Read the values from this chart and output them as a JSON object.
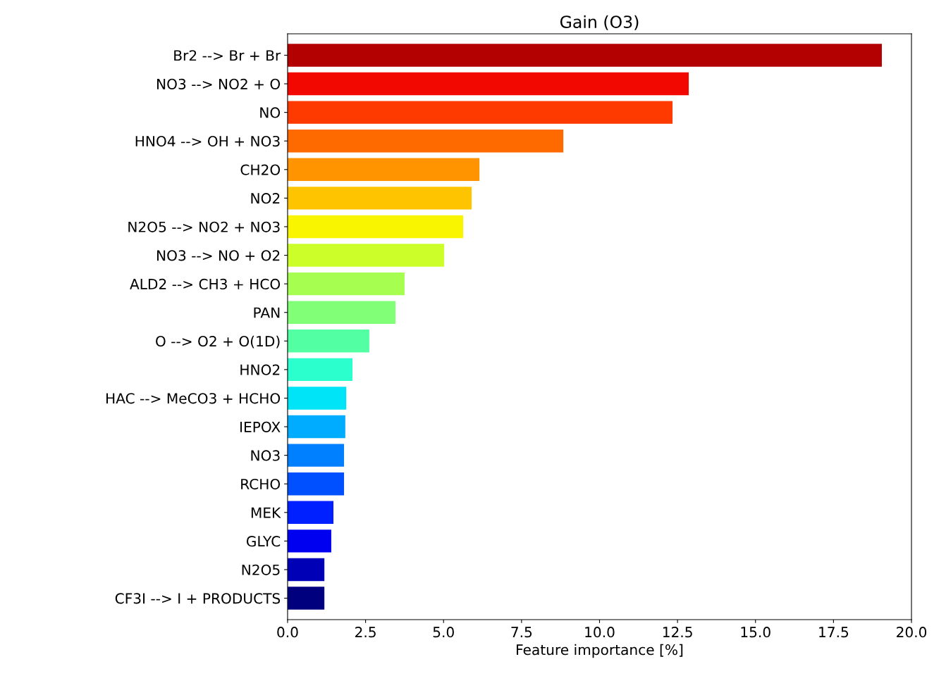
{
  "chart_data": {
    "type": "bar",
    "orientation": "horizontal",
    "title": "Gain (O3)",
    "xlabel": "Feature importance [%]",
    "categories": [
      "Br2 --> Br + Br",
      "NO3 --> NO2 + O",
      "NO",
      "HNO4 --> OH + NO3",
      "CH2O",
      "NO2",
      "N2O5 --> NO2 + NO3",
      "NO3 --> NO + O2",
      "ALD2 --> CH3 + HCO",
      "PAN",
      "O --> O2 + O(1D)",
      "HNO2",
      "HAC --> MeCO3 + HCHO",
      "IEPOX",
      "NO3",
      "RCHO",
      "MEK",
      "GLYC",
      "N2O5",
      "CF3I --> I + PRODUCTS"
    ],
    "values": [
      19.05,
      12.86,
      12.34,
      8.84,
      6.15,
      5.9,
      5.63,
      5.02,
      3.75,
      3.46,
      2.62,
      2.08,
      1.88,
      1.85,
      1.81,
      1.81,
      1.47,
      1.4,
      1.18,
      1.18
    ],
    "colors": [
      "#b30000",
      "#f20800",
      "#ff3a00",
      "#ff6a00",
      "#ff9400",
      "#ffc400",
      "#f9f500",
      "#ccff2a",
      "#a6ff50",
      "#80ff77",
      "#53ffa3",
      "#2affcd",
      "#00e4f8",
      "#00acff",
      "#0080ff",
      "#0050ff",
      "#0020ff",
      "#0000f1",
      "#0000b6",
      "#00007f"
    ],
    "xlim": [
      0,
      20
    ],
    "xticks": [
      {
        "value": 0,
        "label": "0.0"
      },
      {
        "value": 2.5,
        "label": "2.5"
      },
      {
        "value": 5,
        "label": "5.0"
      },
      {
        "value": 7.5,
        "label": "7.5"
      },
      {
        "value": 10,
        "label": "10.0"
      },
      {
        "value": 12.5,
        "label": "12.5"
      },
      {
        "value": 15,
        "label": "15.0"
      },
      {
        "value": 17.5,
        "label": "17.5"
      },
      {
        "value": 20,
        "label": "20.0"
      }
    ],
    "grid": false,
    "legend": false
  }
}
